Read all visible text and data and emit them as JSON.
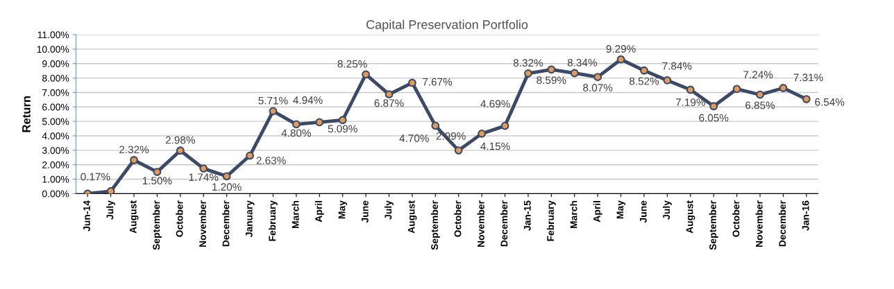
{
  "chart_data": {
    "type": "line",
    "title": "Capital Preservation Portfolio",
    "ylabel": "Return",
    "categories": [
      "Jun-14",
      "July",
      "August",
      "September",
      "October",
      "November",
      "December",
      "January",
      "February",
      "March",
      "April",
      "May",
      "June",
      "July",
      "August",
      "September",
      "October",
      "November",
      "December",
      "Jan-15",
      "February",
      "March",
      "April",
      "May",
      "June",
      "July",
      "August",
      "September",
      "October",
      "November",
      "December",
      "Jan-16"
    ],
    "series": [
      {
        "color": "#3b4a66",
        "values": [
          0.0,
          0.17,
          2.32,
          1.5,
          2.98,
          1.74,
          1.2,
          2.63,
          5.71,
          4.8,
          4.94,
          5.09,
          8.25,
          6.87,
          7.67,
          4.7,
          2.99,
          4.15,
          4.69,
          8.32,
          8.59,
          8.34,
          8.07,
          9.29,
          8.52,
          7.84,
          7.19,
          6.05,
          7.24,
          6.85,
          7.31,
          6.54
        ],
        "value_labels": [
          null,
          "0.17%",
          "2.32%",
          "1.50%",
          "2.98%",
          "1.74%",
          "1.20%",
          "2.63%",
          "5.71%",
          "4.80%",
          "4.94%",
          "5.09%",
          "8.25%",
          "6.87%",
          "7.67%",
          "4.70%",
          "2.99%",
          "4.15%",
          "4.69%",
          "8.32%",
          "8.59%",
          "8.34%",
          "8.07%",
          "9.29%",
          "8.52%",
          "7.84%",
          "7.19%",
          "6.05%",
          "7.24%",
          "6.85%",
          "7.31%",
          "6.54%"
        ]
      }
    ],
    "ylim": [
      0,
      11
    ],
    "yticks": [
      {
        "value": 0,
        "label": "0.00%"
      },
      {
        "value": 1,
        "label": "1.00%"
      },
      {
        "value": 2,
        "label": "2.00%"
      },
      {
        "value": 3,
        "label": "3.00%"
      },
      {
        "value": 4,
        "label": "4.00%"
      },
      {
        "value": 5,
        "label": "5.00%"
      },
      {
        "value": 6,
        "label": "6.00%"
      },
      {
        "value": 7,
        "label": "7.00%"
      },
      {
        "value": 8,
        "label": "8.00%"
      },
      {
        "value": 9,
        "label": "9.00%"
      },
      {
        "value": 10,
        "label": "10.00%"
      },
      {
        "value": 11,
        "label": "11.00%"
      }
    ],
    "grid": "y",
    "marker": "circle",
    "line_style": "solid",
    "legend": false
  }
}
